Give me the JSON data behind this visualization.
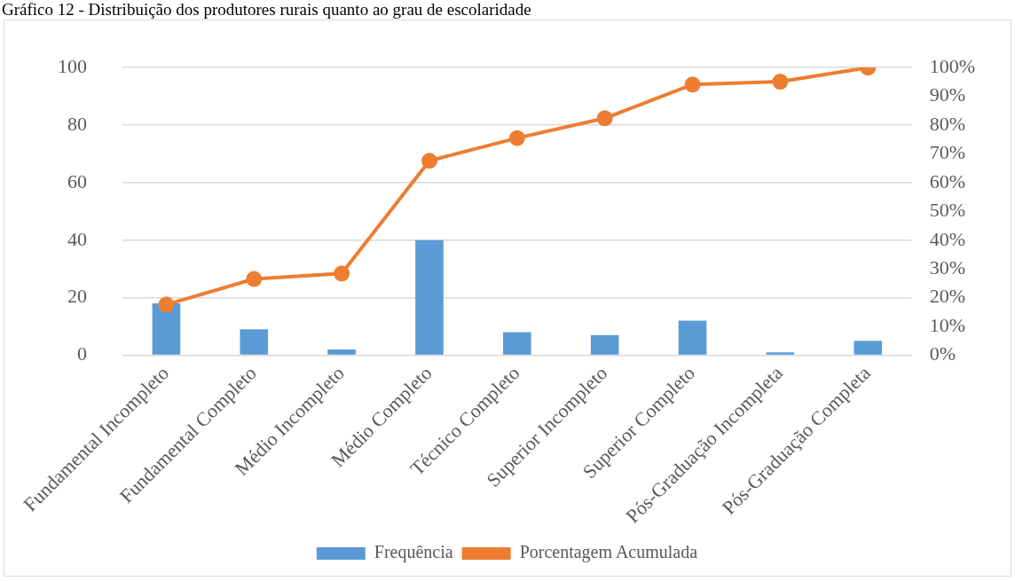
{
  "chart_data": {
    "type": "bar",
    "title": "Gráfico 12 - Distribuição dos produtores rurais quanto ao grau de escolaridade",
    "categories": [
      "Fundamental Incompleto",
      "Fundamental Completo",
      "Médio Incompleto",
      "Médio Completo",
      "Técnico Completo",
      "Superior Incompleto",
      "Superior Completo",
      "Pós-Graduação Incompleta",
      "Pós-Graduação Completa"
    ],
    "series": [
      {
        "name": "Frequência",
        "color": "#5b9bd5",
        "values": [
          18,
          9,
          2,
          40,
          8,
          7,
          12,
          1,
          5
        ]
      },
      {
        "name": "Porcentagem Acumulada",
        "type": "line",
        "axis": "y2",
        "color": "#ed7d31",
        "marker": "circle",
        "values": [
          17.6,
          26.5,
          28.4,
          67.6,
          75.5,
          82.4,
          94.1,
          95.1,
          100
        ]
      }
    ],
    "ylim": [
      0,
      100
    ],
    "yticks": [
      0,
      20,
      40,
      60,
      80,
      100
    ],
    "y2lim": [
      0,
      100
    ],
    "y2ticks": [
      {
        "value": 0,
        "label": "0%"
      },
      {
        "value": 10,
        "label": "10%"
      },
      {
        "value": 20,
        "label": "20%"
      },
      {
        "value": 30,
        "label": "30%"
      },
      {
        "value": 40,
        "label": "40%"
      },
      {
        "value": 50,
        "label": "50%"
      },
      {
        "value": 60,
        "label": "60%"
      },
      {
        "value": 70,
        "label": "70%"
      },
      {
        "value": 80,
        "label": "80%"
      },
      {
        "value": 90,
        "label": "90%"
      },
      {
        "value": 100,
        "label": "100%"
      }
    ],
    "grid": "y",
    "legend": "bottom"
  }
}
